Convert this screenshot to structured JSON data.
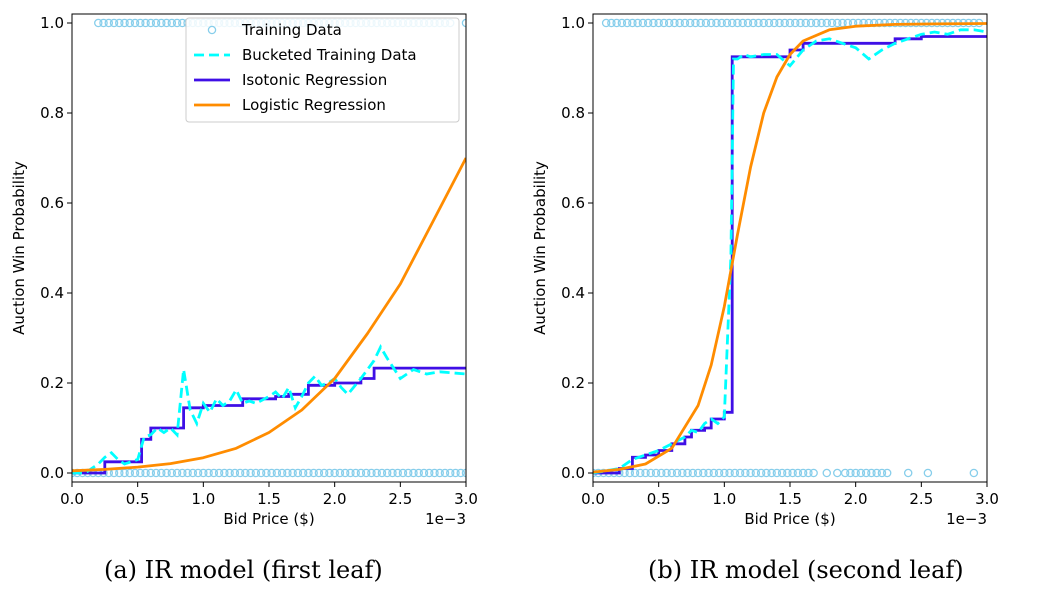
{
  "chart_data": [
    {
      "type": "line",
      "caption": "(a) IR model (first leaf)",
      "xlabel": "Bid Price ($)",
      "ylabel": "Auction Win Probability",
      "x_offset_text": "1e−3",
      "xlim": [
        0,
        3.0
      ],
      "ylim": [
        -0.02,
        1.02
      ],
      "xticks": [
        0,
        0.5,
        1.0,
        1.5,
        2.0,
        2.5,
        3.0
      ],
      "xtick_labels": [
        "0.0",
        "0.5",
        "1.0",
        "1.5",
        "2.0",
        "2.5",
        "3.0"
      ],
      "yticks": [
        0,
        0.2,
        0.4,
        0.6,
        0.8,
        1.0
      ],
      "ytick_labels": [
        "0.0",
        "0.2",
        "0.4",
        "0.6",
        "0.8",
        "1.0"
      ],
      "legend": {
        "placement": "upper-right",
        "entries": [
          "Training Data",
          "Bucketed Training Data",
          "Isotonic Regression",
          "Logistic Regression"
        ]
      },
      "colors": {
        "training": "#87ceeb",
        "bucketed": "#00ffff",
        "isotonic": "#3f0fe6",
        "logistic": "#ff8c00"
      },
      "series": [
        {
          "name": "Training Data",
          "kind": "scatter",
          "points_y0_range": [
            0.0,
            3.0
          ],
          "points_y0_step": 0.04,
          "points_y1_range": [
            0.2,
            2.9
          ],
          "points_y1_step": 0.04,
          "points_y1_extra": [
            3.0
          ]
        },
        {
          "name": "Bucketed Training Data",
          "kind": "dashed",
          "x": [
            0,
            0.1,
            0.2,
            0.25,
            0.3,
            0.35,
            0.4,
            0.45,
            0.5,
            0.55,
            0.6,
            0.65,
            0.7,
            0.75,
            0.8,
            0.85,
            0.9,
            0.95,
            1.0,
            1.05,
            1.1,
            1.15,
            1.2,
            1.25,
            1.3,
            1.35,
            1.4,
            1.5,
            1.55,
            1.6,
            1.65,
            1.7,
            1.75,
            1.8,
            1.85,
            1.9,
            1.95,
            2.0,
            2.05,
            2.1,
            2.2,
            2.3,
            2.35,
            2.4,
            2.5,
            2.6,
            2.7,
            2.8,
            3.0
          ],
          "values": [
            0.0,
            0.0,
            0.02,
            0.035,
            0.045,
            0.03,
            0.02,
            0.025,
            0.03,
            0.08,
            0.085,
            0.1,
            0.09,
            0.1,
            0.085,
            0.23,
            0.14,
            0.11,
            0.155,
            0.135,
            0.165,
            0.15,
            0.16,
            0.185,
            0.155,
            0.16,
            0.155,
            0.17,
            0.18,
            0.165,
            0.19,
            0.145,
            0.17,
            0.2,
            0.215,
            0.195,
            0.2,
            0.21,
            0.19,
            0.175,
            0.21,
            0.25,
            0.28,
            0.255,
            0.21,
            0.23,
            0.22,
            0.225,
            0.22
          ]
        },
        {
          "name": "Isotonic Regression",
          "kind": "step",
          "x": [
            0,
            0.25,
            0.25,
            0.53,
            0.53,
            0.6,
            0.6,
            0.85,
            0.85,
            1.0,
            1.0,
            1.3,
            1.3,
            1.55,
            1.55,
            1.65,
            1.65,
            1.8,
            1.8,
            2.0,
            2.0,
            2.2,
            2.2,
            2.3,
            2.3,
            3.0
          ],
          "values": [
            0.0,
            0.0,
            0.025,
            0.025,
            0.075,
            0.075,
            0.1,
            0.1,
            0.145,
            0.145,
            0.15,
            0.15,
            0.165,
            0.165,
            0.17,
            0.17,
            0.175,
            0.175,
            0.195,
            0.195,
            0.2,
            0.2,
            0.21,
            0.21,
            0.233,
            0.233
          ]
        },
        {
          "name": "Logistic Regression",
          "kind": "curve",
          "x": [
            0,
            0.25,
            0.5,
            0.75,
            1.0,
            1.25,
            1.5,
            1.75,
            2.0,
            2.25,
            2.5,
            2.75,
            3.0
          ],
          "values": [
            0.005,
            0.008,
            0.013,
            0.021,
            0.034,
            0.055,
            0.09,
            0.14,
            0.21,
            0.31,
            0.42,
            0.56,
            0.7
          ]
        }
      ]
    },
    {
      "type": "line",
      "caption": "(b) IR model (second leaf)",
      "xlabel": "Bid Price ($)",
      "ylabel": "Auction Win Probability",
      "x_offset_text": "1e−3",
      "xlim": [
        0,
        3.0
      ],
      "ylim": [
        -0.02,
        1.02
      ],
      "xticks": [
        0,
        0.5,
        1.0,
        1.5,
        2.0,
        2.5,
        3.0
      ],
      "xtick_labels": [
        "0.0",
        "0.5",
        "1.0",
        "1.5",
        "2.0",
        "2.5",
        "3.0"
      ],
      "yticks": [
        0,
        0.2,
        0.4,
        0.6,
        0.8,
        1.0
      ],
      "ytick_labels": [
        "0.0",
        "0.2",
        "0.4",
        "0.6",
        "0.8",
        "1.0"
      ],
      "colors": {
        "training": "#87ceeb",
        "bucketed": "#00ffff",
        "isotonic": "#3f0fe6",
        "logistic": "#ff8c00"
      },
      "series": [
        {
          "name": "Training Data",
          "kind": "scatter",
          "points_y0_range": [
            0.0,
            1.7
          ],
          "points_y0_step": 0.04,
          "points_y0_extra": [
            1.78,
            1.86,
            1.92,
            1.96,
            2.0,
            2.04,
            2.08,
            2.12,
            2.16,
            2.2,
            2.24,
            2.4,
            2.55,
            2.9
          ],
          "points_y1_range": [
            0.1,
            2.95
          ],
          "points_y1_step": 0.04
        },
        {
          "name": "Bucketed Training Data",
          "kind": "dashed",
          "x": [
            0,
            0.1,
            0.2,
            0.3,
            0.4,
            0.5,
            0.6,
            0.7,
            0.75,
            0.8,
            0.85,
            0.9,
            0.95,
            1.0,
            1.05,
            1.07,
            1.1,
            1.15,
            1.2,
            1.3,
            1.4,
            1.5,
            1.6,
            1.7,
            1.8,
            1.9,
            2.0,
            2.1,
            2.2,
            2.3,
            2.4,
            2.5,
            2.6,
            2.7,
            2.8,
            2.9,
            3.0
          ],
          "values": [
            0.0,
            0.005,
            0.01,
            0.03,
            0.04,
            0.05,
            0.065,
            0.08,
            0.095,
            0.09,
            0.11,
            0.12,
            0.11,
            0.125,
            0.48,
            0.92,
            0.92,
            0.93,
            0.925,
            0.93,
            0.93,
            0.905,
            0.94,
            0.96,
            0.965,
            0.955,
            0.945,
            0.92,
            0.94,
            0.955,
            0.965,
            0.975,
            0.98,
            0.975,
            0.985,
            0.985,
            0.98
          ]
        },
        {
          "name": "Isotonic Regression",
          "kind": "step",
          "x": [
            0,
            0.2,
            0.2,
            0.3,
            0.3,
            0.4,
            0.4,
            0.5,
            0.5,
            0.6,
            0.6,
            0.7,
            0.7,
            0.75,
            0.75,
            0.85,
            0.85,
            0.9,
            0.9,
            1.0,
            1.0,
            1.06,
            1.06,
            1.5,
            1.5,
            1.6,
            1.6,
            2.3,
            2.3,
            2.5,
            2.5,
            3.0
          ],
          "values": [
            0.0,
            0.0,
            0.01,
            0.01,
            0.035,
            0.035,
            0.04,
            0.04,
            0.05,
            0.05,
            0.065,
            0.065,
            0.08,
            0.08,
            0.095,
            0.095,
            0.1,
            0.1,
            0.12,
            0.12,
            0.135,
            0.135,
            0.925,
            0.925,
            0.94,
            0.94,
            0.955,
            0.955,
            0.965,
            0.965,
            0.97,
            0.97
          ]
        },
        {
          "name": "Logistic Regression",
          "kind": "curve",
          "x": [
            0,
            0.2,
            0.4,
            0.6,
            0.8,
            0.9,
            1.0,
            1.05,
            1.1,
            1.2,
            1.3,
            1.4,
            1.5,
            1.6,
            1.8,
            2.0,
            2.3,
            2.6,
            3.0
          ],
          "values": [
            0.002,
            0.008,
            0.02,
            0.055,
            0.15,
            0.24,
            0.37,
            0.45,
            0.53,
            0.68,
            0.8,
            0.88,
            0.93,
            0.96,
            0.985,
            0.993,
            0.997,
            0.998,
            0.999
          ]
        }
      ]
    }
  ]
}
